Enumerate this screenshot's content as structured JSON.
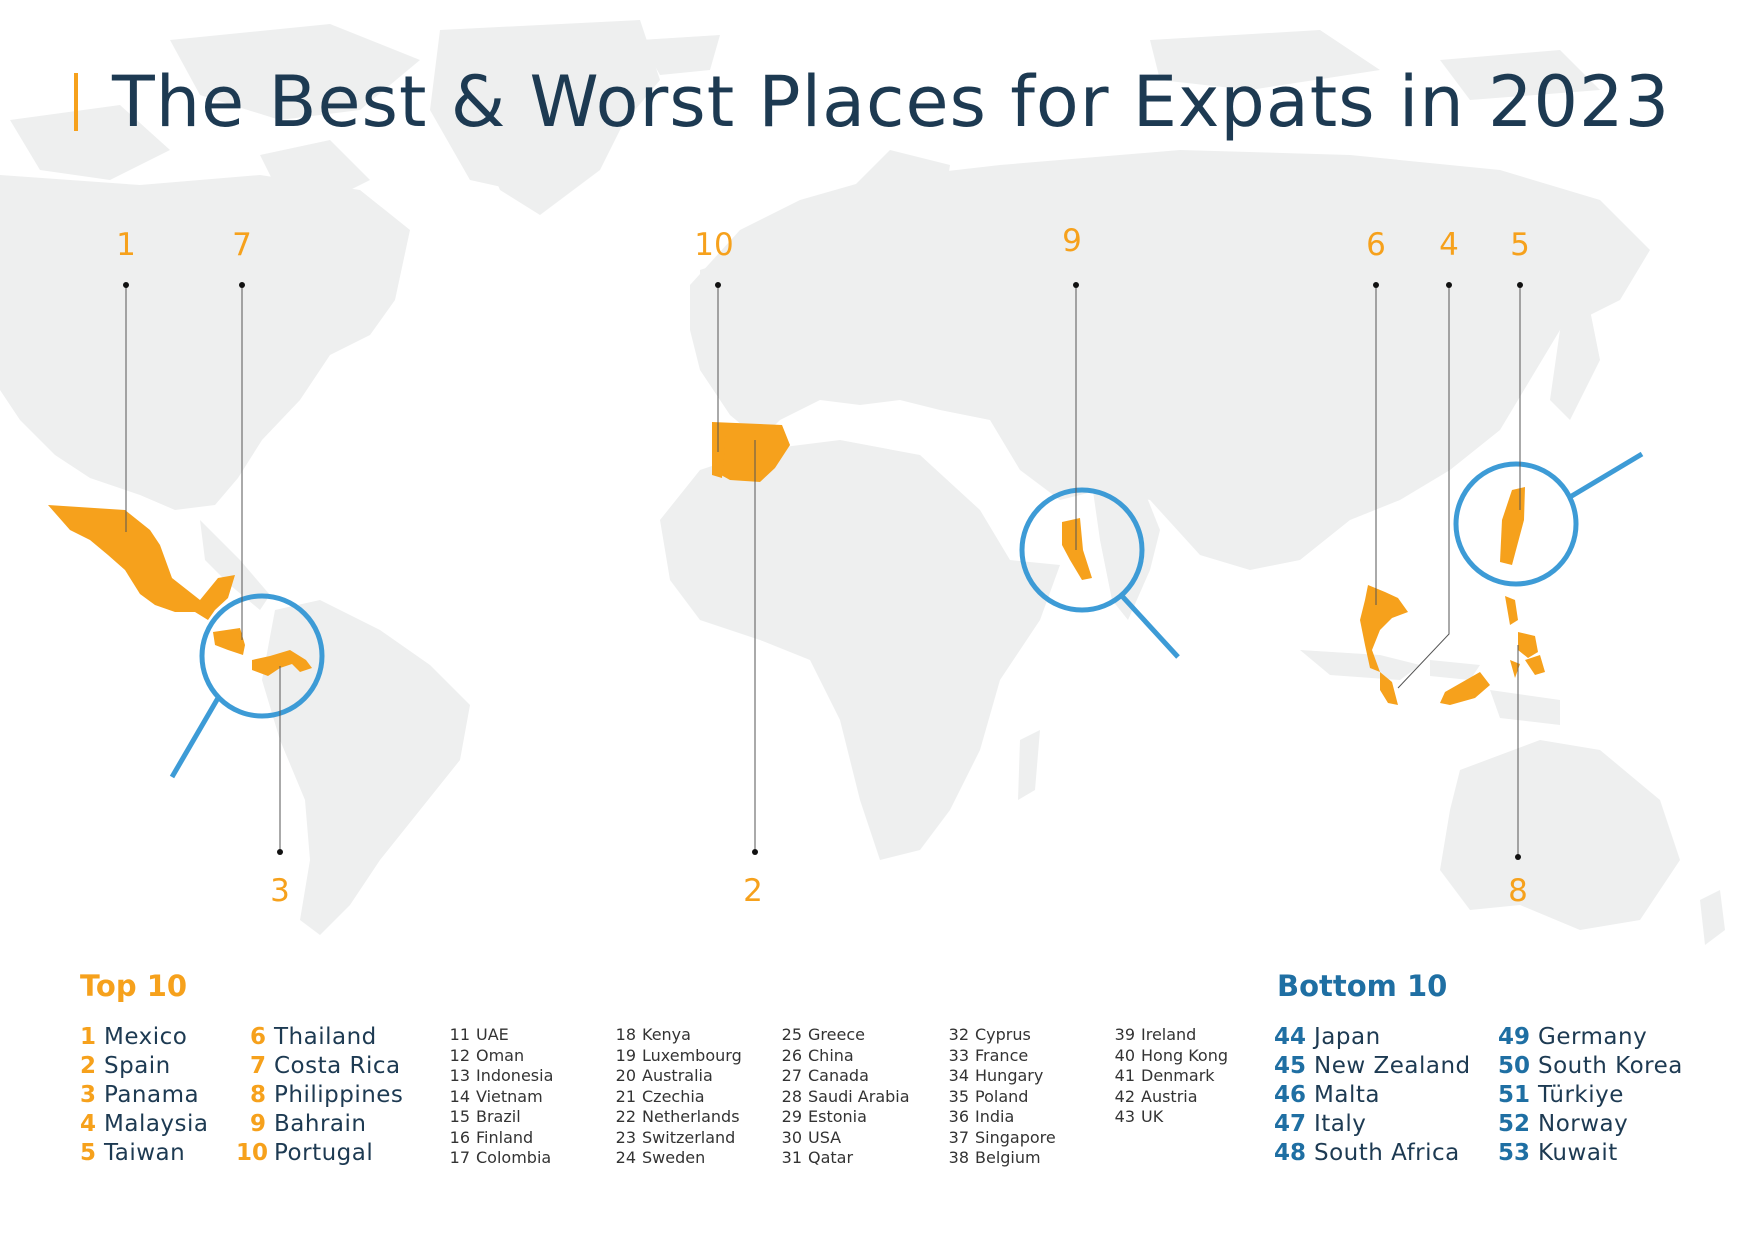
{
  "title": "The Best & Worst Places for Expats in 2023",
  "colors": {
    "accent_orange": "#f6a11c",
    "accent_blue": "#1f6fa3",
    "lens_blue": "#3d9bd6",
    "title_navy": "#1d3a52",
    "land_gray": "#eeefef"
  },
  "map_labels": [
    {
      "id": "mexico",
      "rank": "1"
    },
    {
      "id": "costa-rica",
      "rank": "7"
    },
    {
      "id": "panama",
      "rank": "3"
    },
    {
      "id": "portugal",
      "rank": "10"
    },
    {
      "id": "spain",
      "rank": "2"
    },
    {
      "id": "bahrain",
      "rank": "9"
    },
    {
      "id": "thailand",
      "rank": "6"
    },
    {
      "id": "malaysia",
      "rank": "4"
    },
    {
      "id": "taiwan",
      "rank": "5"
    },
    {
      "id": "philippines",
      "rank": "8"
    }
  ],
  "top10": {
    "title": "Top 10",
    "col1": [
      {
        "rank": "1",
        "name": "Mexico"
      },
      {
        "rank": "2",
        "name": "Spain"
      },
      {
        "rank": "3",
        "name": "Panama"
      },
      {
        "rank": "4",
        "name": "Malaysia"
      },
      {
        "rank": "5",
        "name": "Taiwan"
      }
    ],
    "col2": [
      {
        "rank": "6",
        "name": "Thailand"
      },
      {
        "rank": "7",
        "name": "Costa Rica"
      },
      {
        "rank": "8",
        "name": "Philippines"
      },
      {
        "rank": "9",
        "name": "Bahrain"
      },
      {
        "rank": "10",
        "name": "Portugal"
      }
    ]
  },
  "middle": {
    "col1": [
      {
        "rank": "11",
        "name": "UAE"
      },
      {
        "rank": "12",
        "name": "Oman"
      },
      {
        "rank": "13",
        "name": "Indonesia"
      },
      {
        "rank": "14",
        "name": "Vietnam"
      },
      {
        "rank": "15",
        "name": "Brazil"
      },
      {
        "rank": "16",
        "name": "Finland"
      },
      {
        "rank": "17",
        "name": "Colombia"
      }
    ],
    "col2": [
      {
        "rank": "18",
        "name": "Kenya"
      },
      {
        "rank": "19",
        "name": "Luxembourg"
      },
      {
        "rank": "20",
        "name": "Australia"
      },
      {
        "rank": "21",
        "name": "Czechia"
      },
      {
        "rank": "22",
        "name": "Netherlands"
      },
      {
        "rank": "23",
        "name": "Switzerland"
      },
      {
        "rank": "24",
        "name": "Sweden"
      }
    ],
    "col3": [
      {
        "rank": "25",
        "name": "Greece"
      },
      {
        "rank": "26",
        "name": "China"
      },
      {
        "rank": "27",
        "name": "Canada"
      },
      {
        "rank": "28",
        "name": "Saudi Arabia"
      },
      {
        "rank": "29",
        "name": "Estonia"
      },
      {
        "rank": "30",
        "name": "USA"
      },
      {
        "rank": "31",
        "name": "Qatar"
      }
    ],
    "col4": [
      {
        "rank": "32",
        "name": "Cyprus"
      },
      {
        "rank": "33",
        "name": "France"
      },
      {
        "rank": "34",
        "name": "Hungary"
      },
      {
        "rank": "35",
        "name": "Poland"
      },
      {
        "rank": "36",
        "name": "India"
      },
      {
        "rank": "37",
        "name": "Singapore"
      },
      {
        "rank": "38",
        "name": "Belgium"
      }
    ],
    "col5": [
      {
        "rank": "39",
        "name": "Ireland"
      },
      {
        "rank": "40",
        "name": "Hong Kong"
      },
      {
        "rank": "41",
        "name": "Denmark"
      },
      {
        "rank": "42",
        "name": "Austria"
      },
      {
        "rank": "43",
        "name": "UK"
      }
    ]
  },
  "bottom10": {
    "title": "Bottom 10",
    "col1": [
      {
        "rank": "44",
        "name": "Japan"
      },
      {
        "rank": "45",
        "name": "New Zealand"
      },
      {
        "rank": "46",
        "name": "Malta"
      },
      {
        "rank": "47",
        "name": "Italy"
      },
      {
        "rank": "48",
        "name": "South Africa"
      }
    ],
    "col2": [
      {
        "rank": "49",
        "name": "Germany"
      },
      {
        "rank": "50",
        "name": "South Korea"
      },
      {
        "rank": "51",
        "name": "Türkiye"
      },
      {
        "rank": "52",
        "name": "Norway"
      },
      {
        "rank": "53",
        "name": "Kuwait"
      }
    ]
  }
}
